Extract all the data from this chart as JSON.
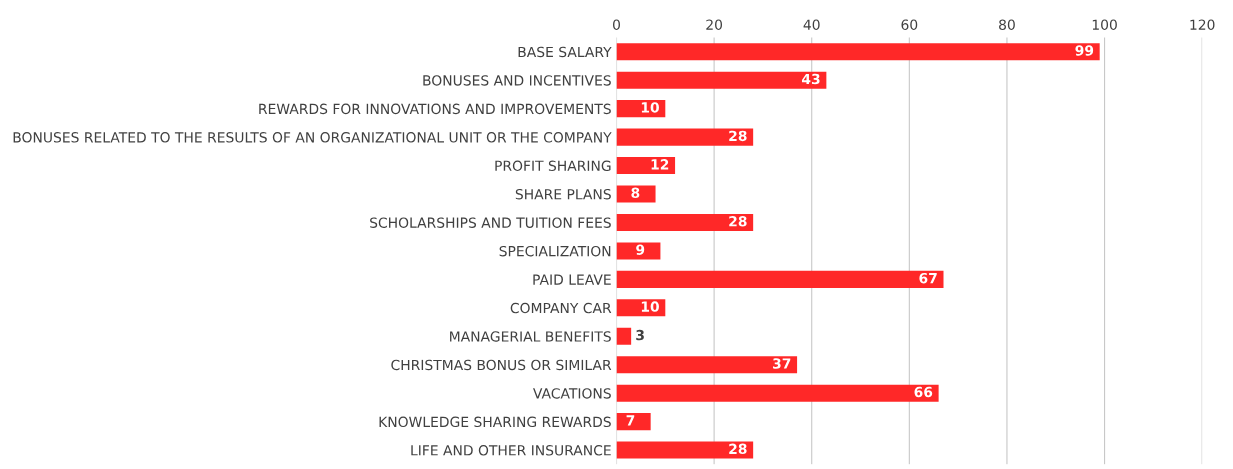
{
  "chart_data": {
    "type": "bar",
    "orientation": "horizontal",
    "categories": [
      "BASE SALARY",
      "BONUSES AND INCENTIVES",
      "REWARDS FOR INNOVATIONS AND IMPROVEMENTS",
      "BONUSES RELATED TO THE RESULTS OF AN ORGANIZATIONAL UNIT OR THE COMPANY",
      "PROFIT SHARING",
      "SHARE PLANS",
      "SCHOLARSHIPS AND TUITION FEES",
      "SPECIALIZATION",
      "PAID LEAVE",
      "COMPANY CAR",
      "MANAGERIAL BENEFITS",
      "CHRISTMAS BONUS OR SIMILAR",
      "VACATIONS",
      "KNOWLEDGE SHARING REWARDS",
      "LIFE AND OTHER INSURANCE"
    ],
    "values": [
      99,
      43,
      10,
      28,
      12,
      8,
      28,
      9,
      67,
      10,
      3,
      37,
      66,
      7,
      28
    ],
    "color": "#ff2828",
    "data_labels": true,
    "xlim": [
      0,
      120
    ],
    "xticks": [
      0,
      20,
      40,
      60,
      80,
      100,
      120
    ],
    "grid": "x"
  }
}
